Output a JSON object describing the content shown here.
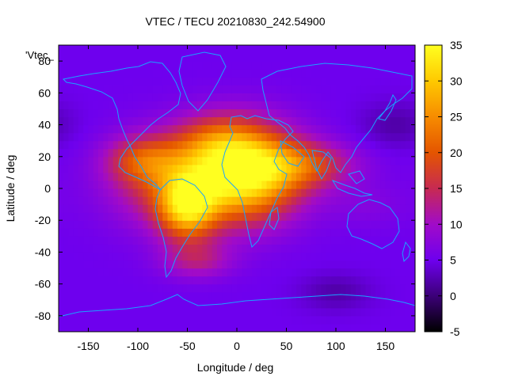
{
  "chart_data": {
    "type": "heatmap",
    "title": "VTEC / TECU 20210830_242.54900",
    "xlabel": "Longitude / deg",
    "ylabel": "Latitude / deg",
    "key_label": "'Vtec_",
    "xlim": [
      -180,
      180
    ],
    "ylim": [
      -90,
      90
    ],
    "clim": [
      -5,
      35
    ],
    "xticks": [
      -150,
      -100,
      -50,
      0,
      50,
      100,
      150
    ],
    "yticks": [
      -80,
      -60,
      -40,
      -20,
      0,
      20,
      40,
      60,
      80
    ],
    "cticks": [
      -5,
      0,
      5,
      10,
      15,
      20,
      25,
      30,
      35
    ],
    "colormap": [
      "#000000",
      "#3c0078",
      "#6e00ee",
      "#a10bc8",
      "#c72a52",
      "#e45500",
      "#f78c00",
      "#ffc900",
      "#ffff20"
    ],
    "coastline_color": "#1aa3ff",
    "grid_step_deg": 5,
    "base_level": 5,
    "features": [
      {
        "lon": 10,
        "lat": 10,
        "sigma_lon": 38,
        "sigma_lat": 20,
        "amplitude": 28
      },
      {
        "lon": -50,
        "lat": -12,
        "sigma_lon": 20,
        "sigma_lat": 14,
        "amplitude": 20
      },
      {
        "lon": -60,
        "lat": 5,
        "sigma_lon": 45,
        "sigma_lat": 20,
        "amplitude": 13
      },
      {
        "lon": -95,
        "lat": 18,
        "sigma_lon": 25,
        "sigma_lat": 10,
        "amplitude": 10
      },
      {
        "lon": 70,
        "lat": 15,
        "sigma_lon": 35,
        "sigma_lat": 10,
        "amplitude": 11
      },
      {
        "lon": -20,
        "lat": 30,
        "sigma_lon": 30,
        "sigma_lat": 12,
        "amplitude": 8
      },
      {
        "lon": -40,
        "lat": -45,
        "sigma_lon": 25,
        "sigma_lat": 8,
        "amplitude": 7
      },
      {
        "lon": 130,
        "lat": -10,
        "sigma_lon": 30,
        "sigma_lat": 10,
        "amplitude": 2
      },
      {
        "lon": 160,
        "lat": 40,
        "sigma_lon": 25,
        "sigma_lat": 10,
        "amplitude": -3
      },
      {
        "lon": 100,
        "lat": -65,
        "sigma_lon": 25,
        "sigma_lat": 8,
        "amplitude": -3
      }
    ]
  }
}
